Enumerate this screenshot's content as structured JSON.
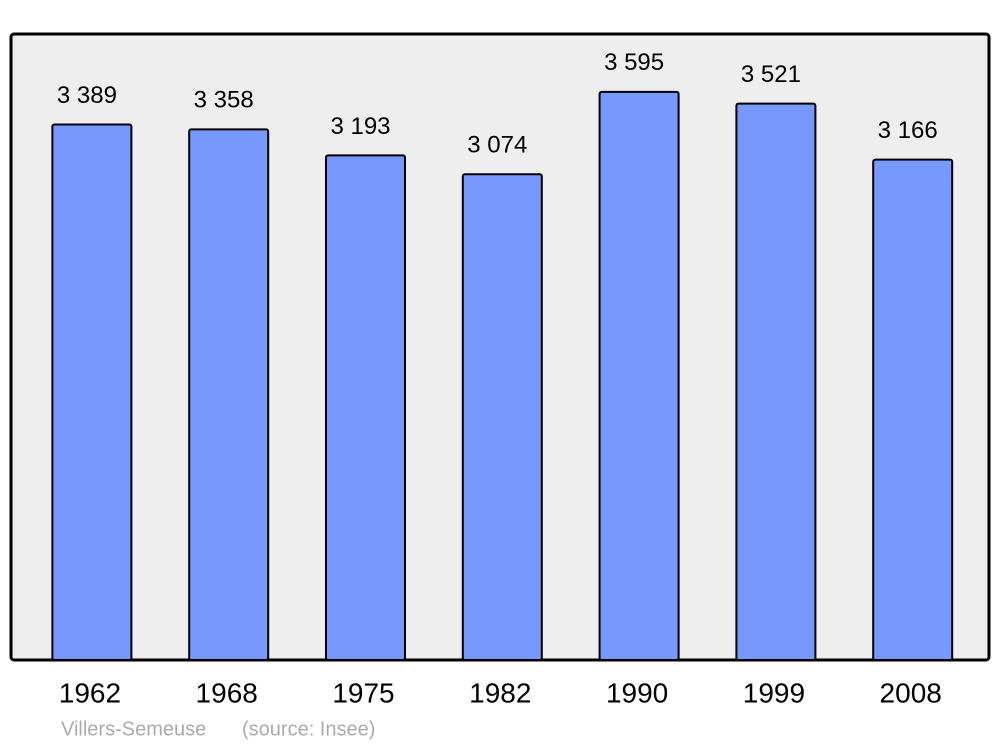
{
  "chart_data": {
    "type": "bar",
    "categories": [
      "1962",
      "1968",
      "1975",
      "1982",
      "1990",
      "1999",
      "2008"
    ],
    "values": [
      3389,
      3358,
      3193,
      3074,
      3595,
      3521,
      3166
    ],
    "value_labels": [
      "3 389",
      "3 358",
      "3 193",
      "3 074",
      "3 595",
      "3 521",
      "3 166"
    ],
    "color": "#7799ff",
    "ylim": [
      0,
      3955
    ],
    "place": "Villers-Semeuse",
    "source": "(source: Insee)"
  }
}
